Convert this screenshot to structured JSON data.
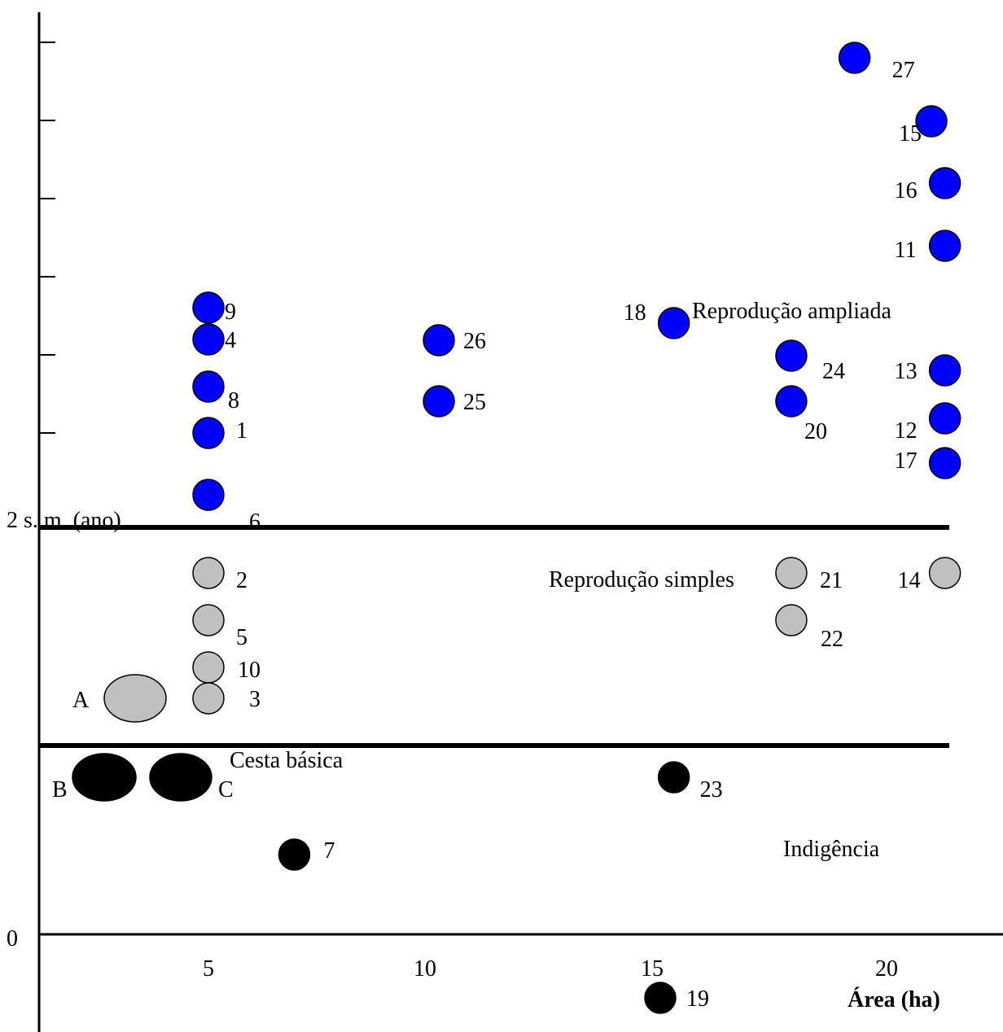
{
  "chart_data": {
    "type": "scatter",
    "title": "",
    "xlabel": "Área (ha)",
    "ylabel": "",
    "x_ticks": [
      "5",
      "10",
      "15",
      "20"
    ],
    "y_origin_label": "0",
    "thresholds": [
      {
        "label": "2 s. m. (ano)"
      },
      {
        "label": "Cesta básica"
      }
    ],
    "region_labels": [
      "Reprodução ampliada",
      "Reprodução simples",
      "Indigência"
    ],
    "colors": {
      "reproducao_ampliada": "#0000ff",
      "reproducao_simples": "#c0c0c0",
      "indigencia": "#000000"
    },
    "points": [
      {
        "label": "27",
        "x": 19.3,
        "group": "reproducao_ampliada"
      },
      {
        "label": "15",
        "x": 21.0,
        "group": "reproducao_ampliada"
      },
      {
        "label": "16",
        "x": 21.3,
        "group": "reproducao_ampliada"
      },
      {
        "label": "11",
        "x": 21.3,
        "group": "reproducao_ampliada"
      },
      {
        "label": "9",
        "x": 5.0,
        "group": "reproducao_ampliada"
      },
      {
        "label": "4",
        "x": 5.0,
        "group": "reproducao_ampliada"
      },
      {
        "label": "26",
        "x": 10.1,
        "group": "reproducao_ampliada"
      },
      {
        "label": "18",
        "x": 15.3,
        "group": "reproducao_ampliada"
      },
      {
        "label": "24",
        "x": 17.9,
        "group": "reproducao_ampliada"
      },
      {
        "label": "13",
        "x": 21.3,
        "group": "reproducao_ampliada"
      },
      {
        "label": "8",
        "x": 5.0,
        "group": "reproducao_ampliada"
      },
      {
        "label": "25",
        "x": 10.1,
        "group": "reproducao_ampliada"
      },
      {
        "label": "20",
        "x": 17.9,
        "group": "reproducao_ampliada"
      },
      {
        "label": "12",
        "x": 21.3,
        "group": "reproducao_ampliada"
      },
      {
        "label": "1",
        "x": 5.0,
        "group": "reproducao_ampliada"
      },
      {
        "label": "17",
        "x": 21.3,
        "group": "reproducao_ampliada"
      },
      {
        "label": "6",
        "x": 5.0,
        "group": "reproducao_ampliada"
      },
      {
        "label": "2",
        "x": 5.0,
        "group": "reproducao_simples"
      },
      {
        "label": "21",
        "x": 17.9,
        "group": "reproducao_simples"
      },
      {
        "label": "14",
        "x": 21.3,
        "group": "reproducao_simples"
      },
      {
        "label": "5",
        "x": 5.0,
        "group": "reproducao_simples"
      },
      {
        "label": "22",
        "x": 17.9,
        "group": "reproducao_simples"
      },
      {
        "label": "10",
        "x": 5.0,
        "group": "reproducao_simples"
      },
      {
        "label": "3",
        "x": 5.0,
        "group": "reproducao_simples"
      },
      {
        "label": "23",
        "x": 15.3,
        "group": "indigencia"
      },
      {
        "label": "7",
        "x": 6.9,
        "group": "indigencia"
      },
      {
        "label": "19",
        "x": 15.0,
        "group": "indigencia"
      }
    ],
    "aggregate_markers": [
      {
        "label": "A",
        "group": "reproducao_simples"
      },
      {
        "label": "B",
        "group": "indigencia"
      },
      {
        "label": "C",
        "group": "indigencia"
      }
    ]
  }
}
